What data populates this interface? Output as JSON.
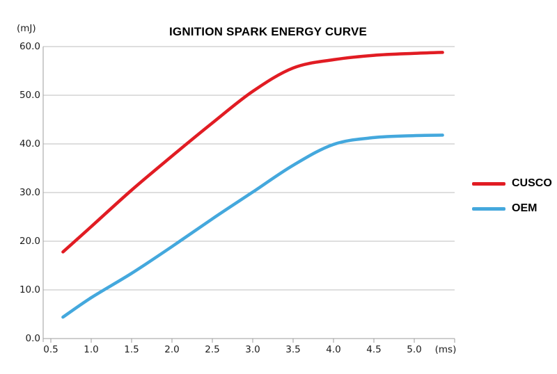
{
  "title": "IGNITION SPARK ENERGY CURVE",
  "y_axis_unit": "(mJ)",
  "x_axis_unit": "(ms)",
  "legend": [
    {
      "label": "CUSCO",
      "color": "#e11c23"
    },
    {
      "label": "OEM",
      "color": "#44a8dd"
    }
  ],
  "colors": {
    "gridline": "#bdbdbd",
    "axis": "#9e9e9e",
    "text": "#1b1b1b",
    "cusco_red": "#e11c23",
    "oem_blue": "#44a8dd"
  },
  "chart_data": {
    "type": "line",
    "title": "IGNITION SPARK ENERGY CURVE",
    "xlabel": "(ms)",
    "ylabel": "(mJ)",
    "x_ticks": [
      "0.5",
      "1.0",
      "1.5",
      "2.0",
      "2.5",
      "3.0",
      "3.5",
      "4.0",
      "4.5",
      "5.0"
    ],
    "y_ticks": [
      "60.0",
      "50.0",
      "40.0",
      "30.0",
      "20.0",
      "10.0",
      "0.0"
    ],
    "ylim": [
      0,
      60
    ],
    "xlim": [
      0.5,
      5.5
    ],
    "grid": "horizontal",
    "legend_position": "right",
    "x": [
      0.65,
      1.0,
      1.5,
      2.0,
      2.5,
      3.0,
      3.5,
      4.0,
      4.5,
      5.0,
      5.35
    ],
    "series": [
      {
        "name": "CUSCO",
        "color": "#e11c23",
        "values": [
          17.8,
          23.0,
          30.5,
          37.5,
          44.3,
          50.8,
          55.6,
          57.3,
          58.2,
          58.6,
          58.8
        ]
      },
      {
        "name": "OEM",
        "color": "#44a8dd",
        "values": [
          4.4,
          8.4,
          13.4,
          18.9,
          24.6,
          30.1,
          35.6,
          39.9,
          41.3,
          41.7,
          41.8
        ]
      }
    ]
  }
}
